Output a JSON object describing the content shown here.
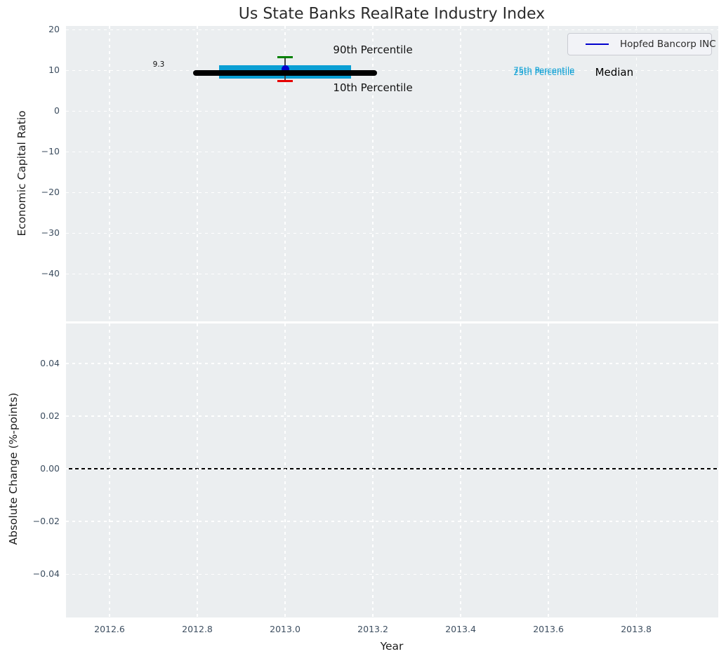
{
  "figure_title": "Us State Banks RealRate Industry Index",
  "chart_data": [
    {
      "type": "line",
      "subplot": "top",
      "title": "Us State Banks RealRate Industry Index",
      "xlabel": "",
      "ylabel": "Economic Capital Ratio",
      "xlim": [
        2012.5,
        2013.987
      ],
      "ylim": [
        -51.6,
        20.9
      ],
      "x_ticks": [
        2012.6,
        2012.8,
        2013.0,
        2013.2,
        2013.4,
        2013.6,
        2013.8
      ],
      "x_tick_labels": [
        "2012.6",
        "2012.8",
        "2013.0",
        "2013.2",
        "2013.4",
        "2013.6",
        "2013.8"
      ],
      "y_ticks": [
        20,
        10,
        0,
        -10,
        -20,
        -30,
        -40
      ],
      "y_tick_labels": [
        "20",
        "10",
        "0",
        "−10",
        "−20",
        "−30",
        "−40"
      ],
      "grid": {
        "on": true,
        "color": "#ffffff",
        "style": "dashed"
      },
      "background_color": "#ebeef0",
      "legend": {
        "location": "upper right",
        "entries": [
          {
            "label": "Hopfed Bancorp INC",
            "color": "#0000cd",
            "marker": "line"
          }
        ]
      },
      "series": [
        {
          "name": "Hopfed Bancorp INC",
          "type": "point",
          "color": "#0000cd",
          "x": [
            2013.0
          ],
          "y": [
            10.3
          ]
        }
      ],
      "industry_distribution": {
        "median_line": {
          "value": 9.3,
          "x_start": 2012.79,
          "x_end": 2013.21,
          "color": "#000000"
        },
        "iqr_band": {
          "p25": 7.9,
          "p75": 11.3,
          "x_start": 2012.85,
          "x_end": 2013.15,
          "color": "#0a9fd4"
        },
        "whisker": {
          "x": 2013.0,
          "p10": 7.3,
          "p90": 13.2,
          "p90_cap_color": "#008000",
          "p10_cap_color": "#e60000",
          "line_color": "#444444"
        }
      },
      "annotations": {
        "p90": {
          "text": "90th Percentile",
          "color": "#111111",
          "x": 2013.2,
          "y": 15.0
        },
        "p10": {
          "text": "10th Percentile",
          "color": "#111111",
          "x": 2013.2,
          "y": 5.7
        },
        "p75": {
          "text": "75th Percentile",
          "color": "#0a9fd4",
          "x": 2013.59,
          "y": 10.1
        },
        "p25": {
          "text": "25th Percentile",
          "color": "#0a9fd4",
          "x": 2013.59,
          "y": 9.55
        },
        "median_label": {
          "text": "Median",
          "color": "#000000",
          "x": 2013.75,
          "y": 9.5
        },
        "median_value": {
          "text": "9.3",
          "color": "#111111",
          "x": 2012.712,
          "y": 11.5
        }
      }
    },
    {
      "type": "line",
      "subplot": "bottom",
      "title": "",
      "xlabel": "Year",
      "ylabel": "Absolute Change (%-points)",
      "xlim": [
        2012.5,
        2013.987
      ],
      "ylim": [
        -0.0565,
        0.0552
      ],
      "x_ticks": [
        2012.6,
        2012.8,
        2013.0,
        2013.2,
        2013.4,
        2013.6,
        2013.8
      ],
      "x_tick_labels": [
        "2012.6",
        "2012.8",
        "2013.0",
        "2013.2",
        "2013.4",
        "2013.6",
        "2013.8"
      ],
      "y_ticks": [
        0.04,
        0.02,
        0.0,
        -0.02,
        -0.04
      ],
      "y_tick_labels": [
        "0.04",
        "0.02",
        "0.00",
        "−0.02",
        "−0.04"
      ],
      "grid": {
        "on": true,
        "color": "#ffffff",
        "style": "dashed"
      },
      "background_color": "#ebeef0",
      "zero_line": {
        "y": 0.0,
        "color": "#000000"
      },
      "series": []
    }
  ]
}
